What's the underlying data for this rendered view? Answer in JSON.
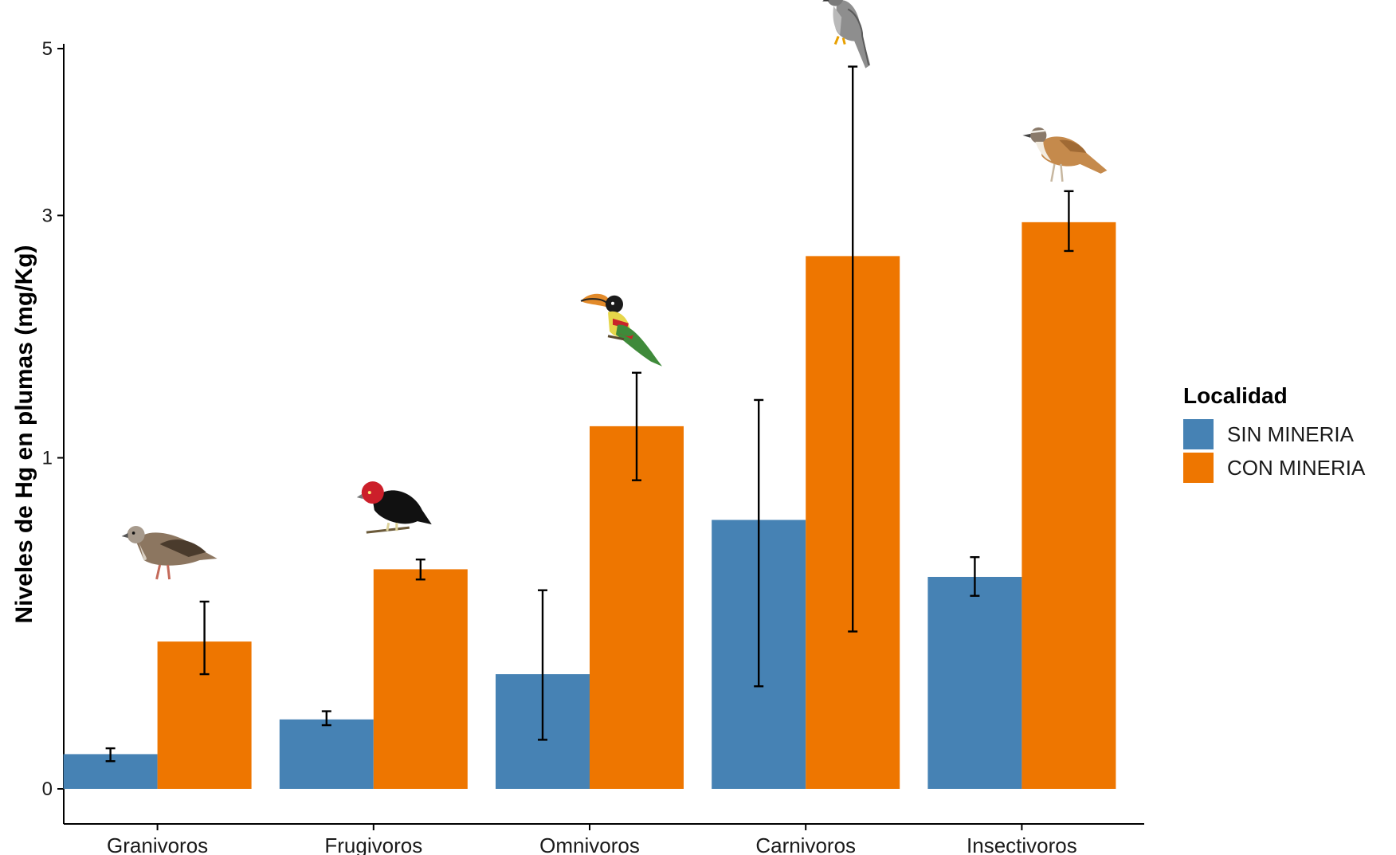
{
  "chart_data": {
    "type": "bar",
    "ylabel": "Niveles de Hg en plumas (mg/Kg)",
    "xlabel": "",
    "categories": [
      "Granivoros",
      "Frugivoros",
      "Omnivoros",
      "Carnivoros",
      "Insectivoros"
    ],
    "yscale": "sqrt",
    "ylim": [
      0,
      5.4
    ],
    "yticks": [
      0,
      1,
      3,
      5
    ],
    "grid": false,
    "legend": {
      "title": "Localidad",
      "position": "right"
    },
    "series": [
      {
        "name": "SIN MINERIA",
        "color": "#4682B4",
        "values": [
          0.011,
          0.044,
          0.12,
          0.66,
          0.41
        ],
        "error_low": [
          0.007,
          0.037,
          0.022,
          0.096,
          0.34
        ],
        "error_high": [
          0.015,
          0.055,
          0.36,
          1.38,
          0.49
        ]
      },
      {
        "name": "CON MINERIA",
        "color": "#EE7600",
        "values": [
          0.198,
          0.44,
          1.2,
          2.59,
          2.93
        ],
        "error_low": [
          0.12,
          0.4,
          0.869,
          0.226,
          2.64
        ],
        "error_high": [
          0.32,
          0.48,
          1.58,
          4.76,
          3.26
        ]
      }
    ],
    "annotations": [
      {
        "type": "bird-illustration",
        "name": "dove-icon",
        "category": "Granivoros"
      },
      {
        "type": "bird-illustration",
        "name": "manakin-icon",
        "category": "Frugivoros"
      },
      {
        "type": "bird-illustration",
        "name": "aracari-icon",
        "category": "Omnivoros"
      },
      {
        "type": "bird-illustration",
        "name": "hawk-icon",
        "category": "Carnivoros"
      },
      {
        "type": "bird-illustration",
        "name": "thrush-icon",
        "category": "Insectivoros"
      }
    ]
  }
}
